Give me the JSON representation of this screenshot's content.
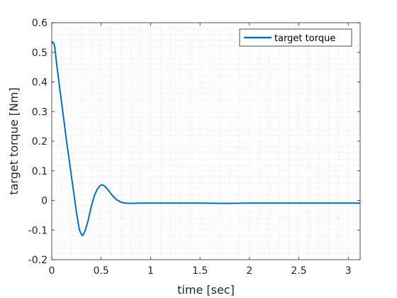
{
  "chart_data": {
    "type": "line",
    "title": "",
    "xlabel": "time [sec]",
    "ylabel": "target torque [Nm]",
    "xlim": [
      0,
      3.12
    ],
    "ylim": [
      -0.2,
      0.6
    ],
    "xticks": [
      0,
      0.5,
      1,
      1.5,
      2,
      2.5,
      3
    ],
    "xtick_labels": [
      "0",
      "0.5",
      "1",
      "1.5",
      "2",
      "2.5",
      "3"
    ],
    "yticks": [
      -0.2,
      -0.1,
      0,
      0.1,
      0.2,
      0.3,
      0.4,
      0.5,
      0.6
    ],
    "ytick_labels": [
      "-0.2",
      "-0.1",
      "0",
      "0.1",
      "0.2",
      "0.3",
      "0.4",
      "0.5",
      "0.6"
    ],
    "grid": "minor dotted",
    "legend_position": "top-right",
    "series": [
      {
        "name": "target torque",
        "color": "#0072BD",
        "x": [
          0,
          0.01,
          0.02,
          0.03,
          0.05,
          0.08,
          0.1,
          0.15,
          0.2,
          0.25,
          0.28,
          0.3,
          0.31,
          0.32,
          0.34,
          0.37,
          0.4,
          0.43,
          0.46,
          0.49,
          0.51,
          0.53,
          0.56,
          0.6,
          0.65,
          0.7,
          0.75,
          0.8,
          0.9,
          1.0,
          1.25,
          1.5,
          1.75,
          2.0,
          2.25,
          2.5,
          2.75,
          3.0,
          3.12
        ],
        "y": [
          0.53,
          0.535,
          0.53,
          0.52,
          0.46,
          0.38,
          0.33,
          0.2,
          0.08,
          -0.04,
          -0.1,
          -0.115,
          -0.118,
          -0.115,
          -0.1,
          -0.065,
          -0.02,
          0.015,
          0.038,
          0.05,
          0.053,
          0.05,
          0.04,
          0.022,
          0.004,
          -0.006,
          -0.009,
          -0.01,
          -0.009,
          -0.009,
          -0.009,
          -0.009,
          -0.01,
          -0.009,
          -0.009,
          -0.009,
          -0.009,
          -0.009,
          -0.009
        ]
      }
    ]
  }
}
